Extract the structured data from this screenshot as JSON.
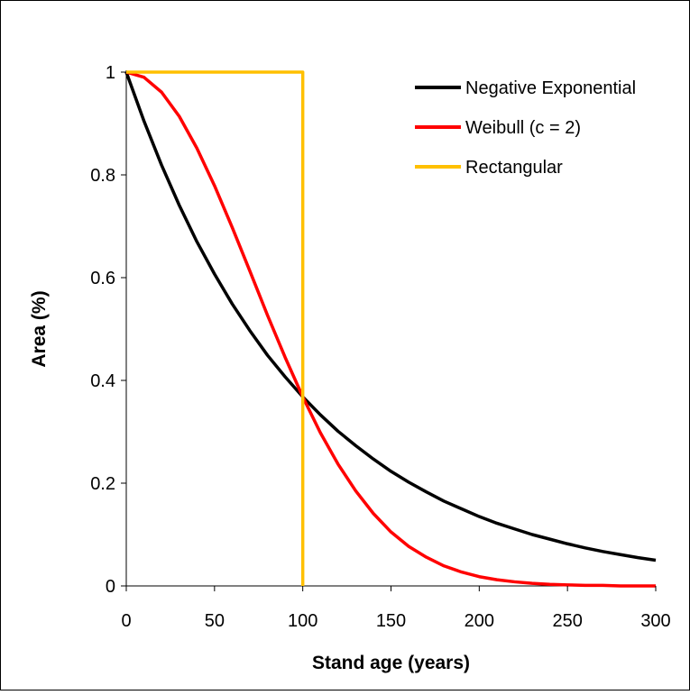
{
  "chart_data": {
    "type": "line",
    "title": "",
    "xlabel": "Stand age (years)",
    "ylabel": "Area (%)",
    "xlim": [
      0,
      300
    ],
    "ylim": [
      0,
      1
    ],
    "x_ticks": [
      "0",
      "50",
      "100",
      "150",
      "200",
      "250",
      "300"
    ],
    "y_ticks": [
      "0",
      "0.2",
      "0.4",
      "0.6",
      "0.8",
      "1"
    ],
    "grid": false,
    "legend_position": "top-right",
    "series": [
      {
        "name": "Negative Exponential",
        "color": "#000000",
        "x": [
          0,
          10,
          20,
          30,
          40,
          50,
          60,
          70,
          80,
          90,
          100,
          110,
          120,
          130,
          140,
          150,
          160,
          170,
          180,
          190,
          200,
          210,
          220,
          230,
          240,
          250,
          260,
          270,
          280,
          290,
          300
        ],
        "y": [
          1.0,
          0.905,
          0.819,
          0.741,
          0.67,
          0.607,
          0.549,
          0.497,
          0.449,
          0.407,
          0.368,
          0.333,
          0.301,
          0.273,
          0.247,
          0.223,
          0.202,
          0.183,
          0.165,
          0.15,
          0.135,
          0.122,
          0.111,
          0.1,
          0.091,
          0.082,
          0.074,
          0.067,
          0.061,
          0.055,
          0.05
        ]
      },
      {
        "name": "Weibull (c = 2)",
        "color": "#ff0000",
        "x": [
          0,
          10,
          20,
          30,
          40,
          50,
          60,
          70,
          80,
          90,
          100,
          110,
          120,
          130,
          140,
          150,
          160,
          170,
          180,
          190,
          200,
          210,
          220,
          230,
          240,
          250,
          260,
          270,
          280,
          290,
          300
        ],
        "y": [
          1.0,
          0.99,
          0.961,
          0.914,
          0.852,
          0.779,
          0.698,
          0.613,
          0.527,
          0.445,
          0.368,
          0.298,
          0.237,
          0.185,
          0.141,
          0.105,
          0.077,
          0.056,
          0.039,
          0.027,
          0.018,
          0.012,
          0.008,
          0.005,
          0.003,
          0.002,
          0.001,
          0.001,
          0.0,
          0.0,
          0.0
        ]
      },
      {
        "name": "Rectangular",
        "color": "#ffc000",
        "x": [
          0,
          100,
          100
        ],
        "y": [
          1.0,
          1.0,
          0.0
        ]
      }
    ]
  }
}
